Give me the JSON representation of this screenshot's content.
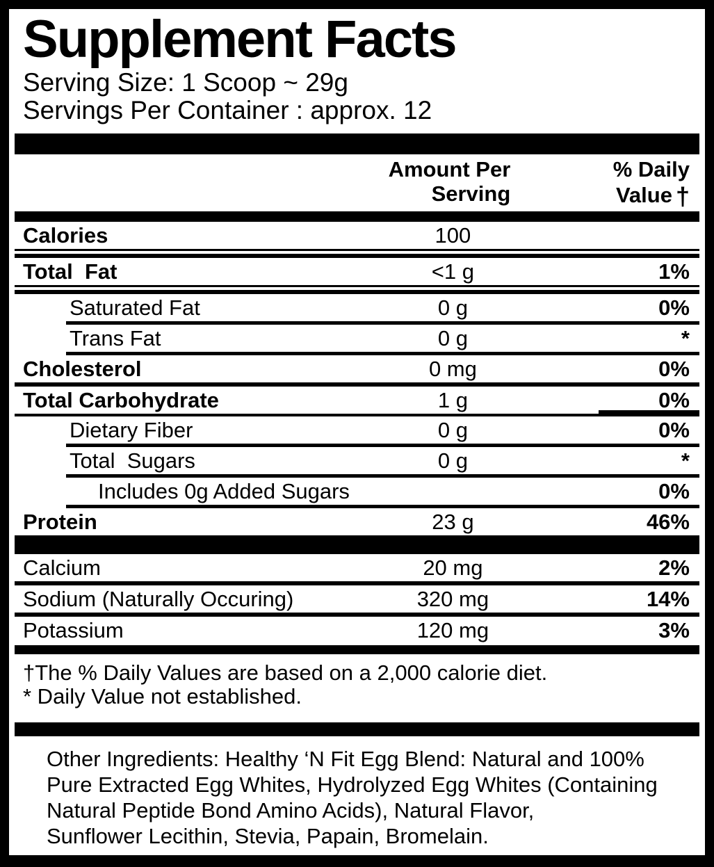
{
  "title": "Supplement Facts",
  "serving": {
    "size": "Serving Size: 1 Scoop ~ 29g",
    "per_container": "Servings Per Container : approx. 12"
  },
  "columns": {
    "amount_line1": "Amount Per",
    "amount_line2": "Serving",
    "dv_line1": "% Daily",
    "dv_line2": "Value",
    "dv_dagger": "†"
  },
  "table": {
    "main_rows": [
      {
        "label": "Calories",
        "amount": "100",
        "dv": "",
        "bold": true,
        "indent": 0,
        "sep": "double"
      },
      {
        "label": "Total  Fat",
        "amount": "<1 g",
        "dv": "1%",
        "bold": true,
        "indent": 0,
        "sep": "double"
      },
      {
        "label": "Saturated Fat",
        "amount": "0 g",
        "dv": "0%",
        "bold": false,
        "indent": 1,
        "sep": "indent"
      },
      {
        "label": "Trans Fat",
        "amount": "0 g",
        "dv": "*",
        "bold": false,
        "indent": 1,
        "sep": "indent"
      },
      {
        "label": "Cholesterol",
        "amount": "0 mg",
        "dv": "0%",
        "bold": true,
        "indent": 0,
        "sep": "full"
      },
      {
        "label": "Total Carbohydrate",
        "amount": "1 g",
        "dv": "0%",
        "bold": true,
        "indent": 0,
        "sep": "carb"
      },
      {
        "label": "Dietary Fiber",
        "amount": "0 g",
        "dv": "0%",
        "bold": false,
        "indent": 1,
        "sep": "indent"
      },
      {
        "label": "Total  Sugars",
        "amount": "0 g",
        "dv": "*",
        "bold": false,
        "indent": 1,
        "sep": "indent"
      },
      {
        "label": "Includes 0g Added Sugars",
        "amount": "",
        "dv": "0%",
        "bold": false,
        "indent": 2,
        "sep": "indent"
      },
      {
        "label": "Protein",
        "amount": "23 g",
        "dv": "46%",
        "bold": true,
        "indent": 0,
        "sep": "none"
      }
    ],
    "mineral_rows": [
      {
        "label": "Calcium",
        "amount": "20 mg",
        "dv": "2%",
        "bold": false,
        "indent": 0,
        "sep": "full"
      },
      {
        "label": "Sodium (Naturally Occuring)",
        "amount": "320 mg",
        "dv": "14%",
        "bold": false,
        "indent": 0,
        "sep": "full"
      },
      {
        "label": "Potassium",
        "amount": "120 mg",
        "dv": "3%",
        "bold": false,
        "indent": 0,
        "sep": "none"
      }
    ]
  },
  "footnotes": {
    "daily_values": "†The % Daily Values are based on a 2,000 calorie diet.",
    "not_established": "* Daily Value not established."
  },
  "other_ingredients_lines": [
    "Other Ingredients: Healthy ‘N Fit Egg Blend: Natural and 100%",
    "Pure Extracted Egg Whites, Hydrolyzed Egg Whites (Containing",
    "Natural Peptide Bond Amino Acids), Natural Flavor,",
    "Sunflower Lecithin, Stevia, Papain, Bromelain."
  ],
  "colors": {
    "ink": "#000000",
    "paper": "#ffffff"
  }
}
